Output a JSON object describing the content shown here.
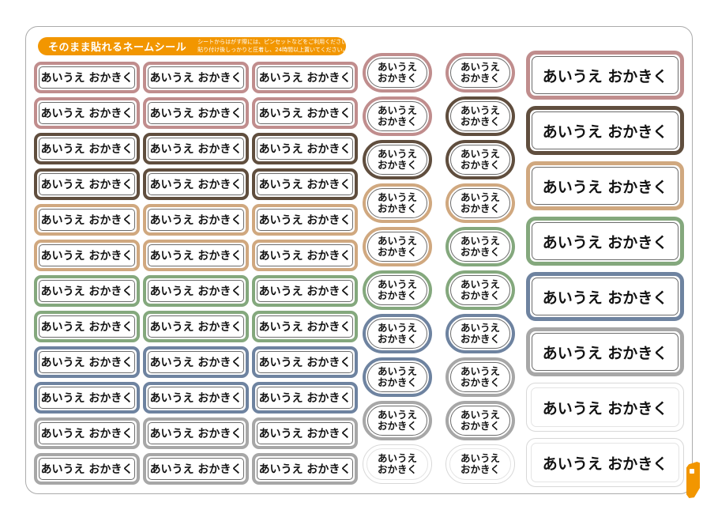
{
  "header": {
    "title": "そのまま貼れるネームシール",
    "instruction_line1": "シートからはがす際には、ピンセットなどをご利用ください。",
    "instruction_line2": "貼り付け後しっかりと圧着し、24時間以上置いてください。",
    "bar_color": "#f29600",
    "square_icon": "rounded-square-outline"
  },
  "labels": {
    "single_line_text": "あいうえ おかきく",
    "two_line_text": [
      "あいうえ",
      "おかきく"
    ],
    "text_color": "#121212",
    "cut_line_color": "#6b6b6b"
  },
  "palette": {
    "rose": "#c08d8d",
    "brown": "#604e3e",
    "tan": "#d0a87f",
    "green": "#84a87d",
    "blue": "#6e83a0",
    "gray": "#a7a7a7",
    "white": "#d8d8d8"
  },
  "small_grid": {
    "columns": 3,
    "rows": 12,
    "row_colors": [
      "rose",
      "rose",
      "brown",
      "brown",
      "tan",
      "tan",
      "green",
      "green",
      "blue",
      "blue",
      "gray",
      "gray"
    ]
  },
  "oval_grid": {
    "columns": 2,
    "rows": [
      [
        "rose",
        "rose"
      ],
      [
        "rose",
        "brown"
      ],
      [
        "brown",
        "brown"
      ],
      [
        "tan",
        "tan"
      ],
      [
        "tan",
        "green"
      ],
      [
        "green",
        "green"
      ],
      [
        "blue",
        "blue"
      ],
      [
        "blue",
        "gray"
      ],
      [
        "gray",
        "gray"
      ],
      [
        "white",
        "white"
      ]
    ]
  },
  "large_column": {
    "colors": [
      "rose",
      "brown",
      "tan",
      "green",
      "blue",
      "gray",
      "white",
      "white"
    ]
  },
  "corner_fold": {
    "icon": "page-curl",
    "color": "#f29600"
  }
}
